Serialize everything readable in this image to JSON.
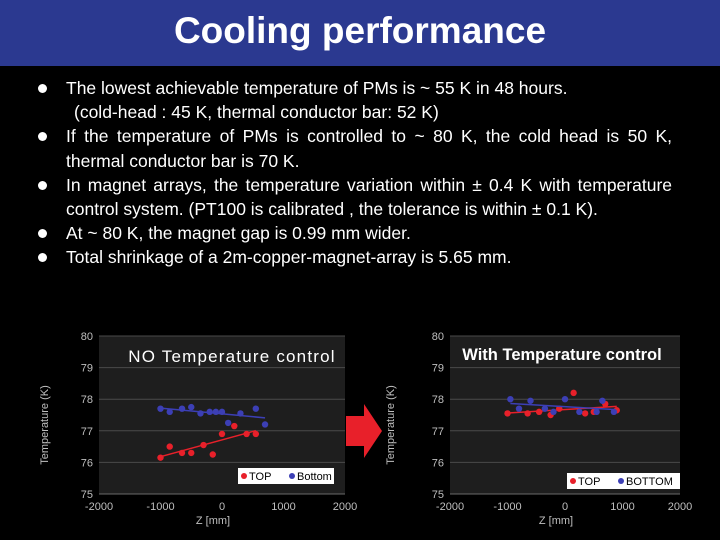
{
  "slide": {
    "title": "Cooling performance",
    "bullets": [
      {
        "text": "The lowest achievable temperature of PMs is ~ 55 K in 48 hours.",
        "sub": "(cold-head : 45 K, thermal conductor bar: 52 K)"
      },
      {
        "text": "If the temperature of PMs is controlled to ~ 80 K, the cold head is 50 K, thermal conductor bar is 70 K.",
        "sub": ""
      },
      {
        "text": "In magnet arrays, the temperature variation within ± 0.4 K with temperature control system. (PT100 is calibrated , the tolerance is within ± 0.1 K).",
        "sub": ""
      },
      {
        "text": "At ~ 80 K, the magnet gap is 0.99 mm wider.",
        "sub": ""
      },
      {
        "text": "Total shrinkage of a 2m-copper-magnet-array is 5.65 mm.",
        "sub": ""
      }
    ]
  },
  "colors": {
    "title_bg": "#2b3990",
    "top_series": "#e8202a",
    "bottom_series": "#3c3fb5",
    "arrow": "#e8202a"
  },
  "chart_data": [
    {
      "type": "scatter",
      "title": "NO Temperature control",
      "xlabel": "Z [mm]",
      "ylabel": "Temperature (K)",
      "xlim": [
        -2000,
        2000
      ],
      "ylim": [
        75,
        80
      ],
      "xticks": [
        "-2000",
        "-1000",
        "0",
        "1000",
        "2000"
      ],
      "yticks": [
        "75",
        "76",
        "77",
        "78",
        "79",
        "80"
      ],
      "series": [
        {
          "name": "TOP",
          "x": [
            -1000,
            -850,
            -650,
            -500,
            -300,
            -150,
            0,
            200,
            400,
            550
          ],
          "y": [
            76.15,
            76.5,
            76.3,
            76.3,
            76.55,
            76.25,
            76.9,
            77.15,
            76.9,
            76.9
          ]
        },
        {
          "name": "Bottom",
          "x": [
            -1000,
            -850,
            -650,
            -500,
            -350,
            -200,
            -100,
            0,
            100,
            300,
            550,
            700
          ],
          "y": [
            77.7,
            77.6,
            77.7,
            77.75,
            77.55,
            77.6,
            77.6,
            77.6,
            77.25,
            77.55,
            77.7,
            77.2
          ]
        }
      ],
      "legend": "bottom-right"
    },
    {
      "type": "scatter",
      "title": "With Temperature control",
      "xlabel": "Z [mm]",
      "ylabel": "Temperature (K)",
      "xlim": [
        -2000,
        2000
      ],
      "ylim": [
        75,
        80
      ],
      "xticks": [
        "-2000",
        "-1000",
        "0",
        "1000",
        "2000"
      ],
      "yticks": [
        "75",
        "76",
        "77",
        "78",
        "79",
        "80"
      ],
      "series": [
        {
          "name": "TOP",
          "x": [
            -1000,
            -650,
            -450,
            -250,
            -100,
            150,
            350,
            500,
            700,
            900
          ],
          "y": [
            77.55,
            77.55,
            77.6,
            77.5,
            77.7,
            78.2,
            77.55,
            77.6,
            77.85,
            77.65
          ]
        },
        {
          "name": "BOTTOM",
          "x": [
            -950,
            -800,
            -600,
            -350,
            -200,
            0,
            250,
            550,
            650,
            850
          ],
          "y": [
            78.0,
            77.7,
            77.95,
            77.7,
            77.6,
            78.0,
            77.6,
            77.6,
            77.95,
            77.6
          ]
        }
      ],
      "legend": "bottom-right"
    }
  ]
}
